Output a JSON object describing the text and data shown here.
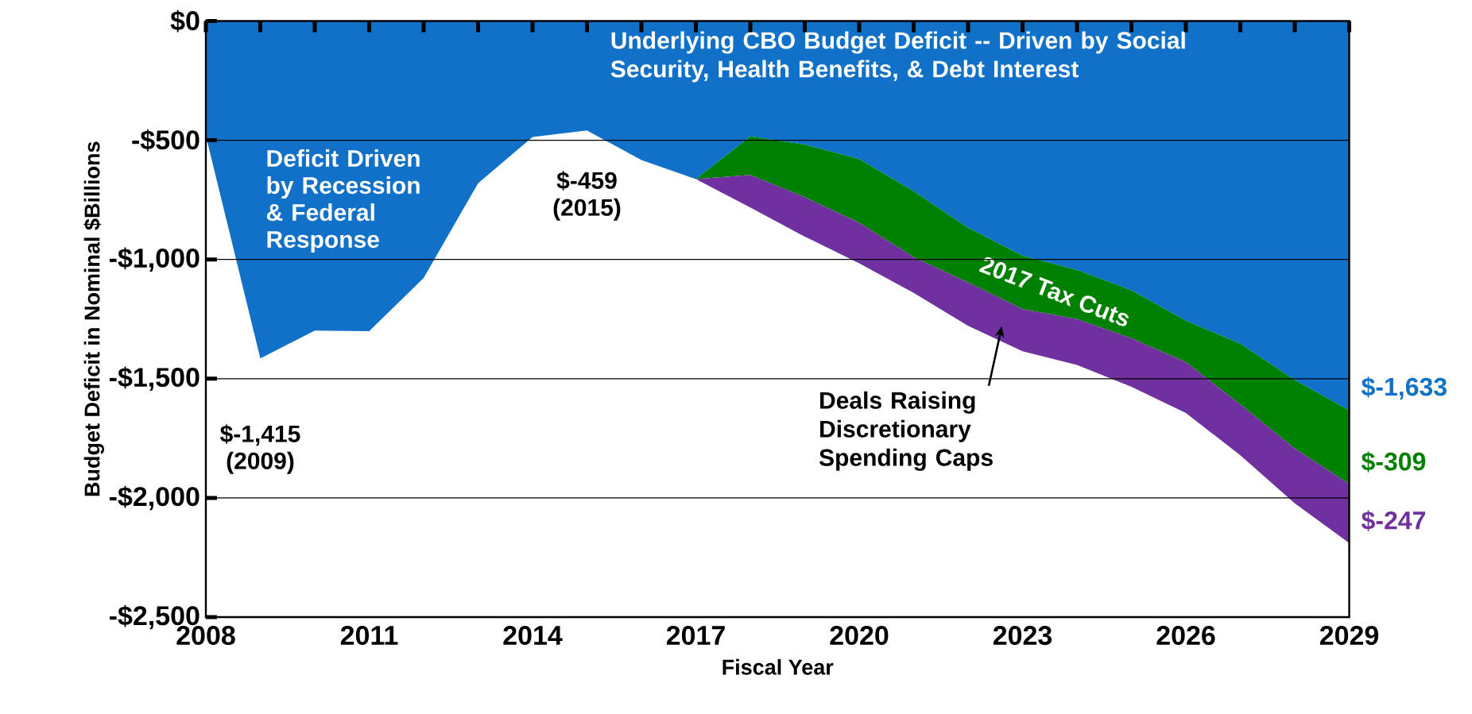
{
  "chart_data": {
    "type": "area",
    "stacked": true,
    "xlabel": "Fiscal Year",
    "ylabel": "Budget Deficit in Nominal $Billions",
    "grid": "y",
    "xlim": [
      2008,
      2029
    ],
    "ylim": [
      -2500,
      0
    ],
    "xticks": [
      2008,
      {
        "value": 2009,
        "label": null
      },
      {
        "value": 2010,
        "label": null
      },
      2011,
      {
        "value": 2012,
        "label": null
      },
      {
        "value": 2013,
        "label": null
      },
      2014,
      {
        "value": 2015,
        "label": null
      },
      {
        "value": 2016,
        "label": null
      },
      2017,
      {
        "value": 2018,
        "label": null
      },
      {
        "value": 2019,
        "label": null
      },
      2020,
      {
        "value": 2021,
        "label": null
      },
      {
        "value": 2022,
        "label": null
      },
      2023,
      {
        "value": 2024,
        "label": null
      },
      {
        "value": 2025,
        "label": null
      },
      2026,
      {
        "value": 2027,
        "label": null
      },
      {
        "value": 2028,
        "label": null
      },
      2029
    ],
    "yticks": [
      {
        "value": 0,
        "label": "$0"
      },
      {
        "value": -500,
        "label": "-$500"
      },
      {
        "value": -1000,
        "label": "-$1,000"
      },
      {
        "value": -1500,
        "label": "-$1,500"
      },
      {
        "value": -2000,
        "label": "-$2,000"
      },
      {
        "value": -2500,
        "label": "-$2,500"
      }
    ],
    "x": [
      2008,
      2009,
      2010,
      2011,
      2012,
      2013,
      2014,
      2015,
      2016,
      2017,
      2018,
      2019,
      2020,
      2021,
      2022,
      2023,
      2024,
      2025,
      2026,
      2027,
      2028,
      2029
    ],
    "series": [
      {
        "name": "Underlying CBO Budget Deficit -- Driven by Social Security, Health Benefits, & Debt Interest",
        "color": "#1170c8",
        "values": [
          -481,
          -1415,
          -1298,
          -1301,
          -1078,
          -680,
          -486,
          -459,
          -583,
          -663,
          -484,
          -518,
          -579,
          -714,
          -867,
          -984,
          -1044,
          -1129,
          -1257,
          -1353,
          -1506,
          -1633
        ],
        "value_labels": [
          null,
          null,
          null,
          null,
          null,
          null,
          null,
          null,
          null,
          null,
          null,
          null,
          null,
          null,
          null,
          null,
          null,
          null,
          null,
          null,
          null,
          "$-1,633"
        ]
      },
      {
        "name": "2017 Tax Cuts",
        "color": "#008000",
        "values": [
          null,
          null,
          null,
          null,
          null,
          null,
          null,
          null,
          null,
          0,
          -161,
          -221,
          -267,
          -276,
          -230,
          -224,
          -206,
          -202,
          -174,
          -255,
          -287,
          -309
        ],
        "value_labels": [
          null,
          null,
          null,
          null,
          null,
          null,
          null,
          null,
          null,
          null,
          null,
          null,
          null,
          null,
          null,
          null,
          null,
          null,
          null,
          null,
          null,
          "$-309"
        ]
      },
      {
        "name": "Deals Raising Discretionary Spending Caps",
        "color": "#7030a0",
        "values": [
          null,
          null,
          null,
          null,
          null,
          null,
          null,
          null,
          null,
          0,
          -137,
          -165,
          -170,
          -150,
          -181,
          -177,
          -192,
          -203,
          -213,
          -213,
          -230,
          -247
        ],
        "value_labels": [
          null,
          null,
          null,
          null,
          null,
          null,
          null,
          null,
          null,
          null,
          null,
          null,
          null,
          null,
          null,
          null,
          null,
          null,
          null,
          null,
          null,
          "$-247"
        ]
      }
    ],
    "annotations": [
      "Deficit Driven by Recession & Federal Response",
      {
        "text": "$-1,415 (2009)",
        "x": 2009,
        "y": -1415
      },
      {
        "text": "$-459 (2015)",
        "x": 2015,
        "y": -459
      }
    ]
  }
}
